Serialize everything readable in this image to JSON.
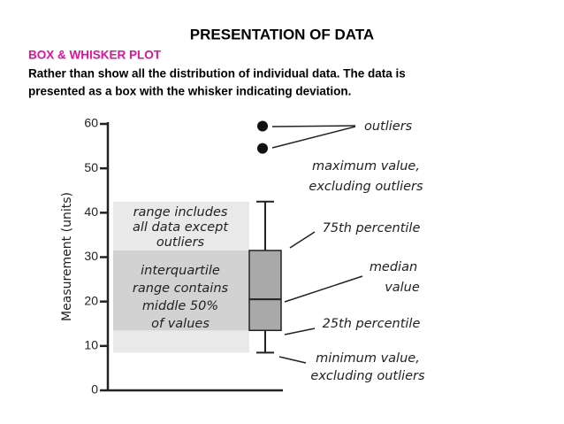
{
  "header": {
    "title": "PRESENTATION OF DATA",
    "subtitle": "BOX & WHISKER PLOT",
    "body": [
      "Rather than show all the distribution of individual data. The data is",
      "presented as a box with the whisker indicating deviation."
    ]
  },
  "chart_data": {
    "type": "box",
    "y_label": "Measurement (units)",
    "ylim": [
      0,
      60
    ],
    "yticks": [
      0,
      10,
      20,
      30,
      40,
      50,
      60
    ],
    "box": {
      "min": 8.5,
      "q1": 13.5,
      "median": 20.5,
      "q3": 31.5,
      "max": 42.5
    },
    "outliers": [
      59.5,
      54.5
    ],
    "annotations": [
      {
        "lines": [
          "outliers"
        ]
      },
      {
        "lines": [
          "maximum value,",
          "excluding outliers"
        ]
      },
      {
        "lines": [
          "75th percentile"
        ]
      },
      {
        "lines": [
          "median",
          "value"
        ]
      },
      {
        "lines": [
          "25th percentile"
        ]
      },
      {
        "lines": [
          "minimum value,",
          "excluding outliers"
        ]
      },
      {
        "lines": [
          "range includes",
          "all data except",
          "outliers"
        ]
      },
      {
        "lines": [
          "interquartile",
          "range contains",
          "middle 50%",
          "of values"
        ]
      }
    ]
  }
}
